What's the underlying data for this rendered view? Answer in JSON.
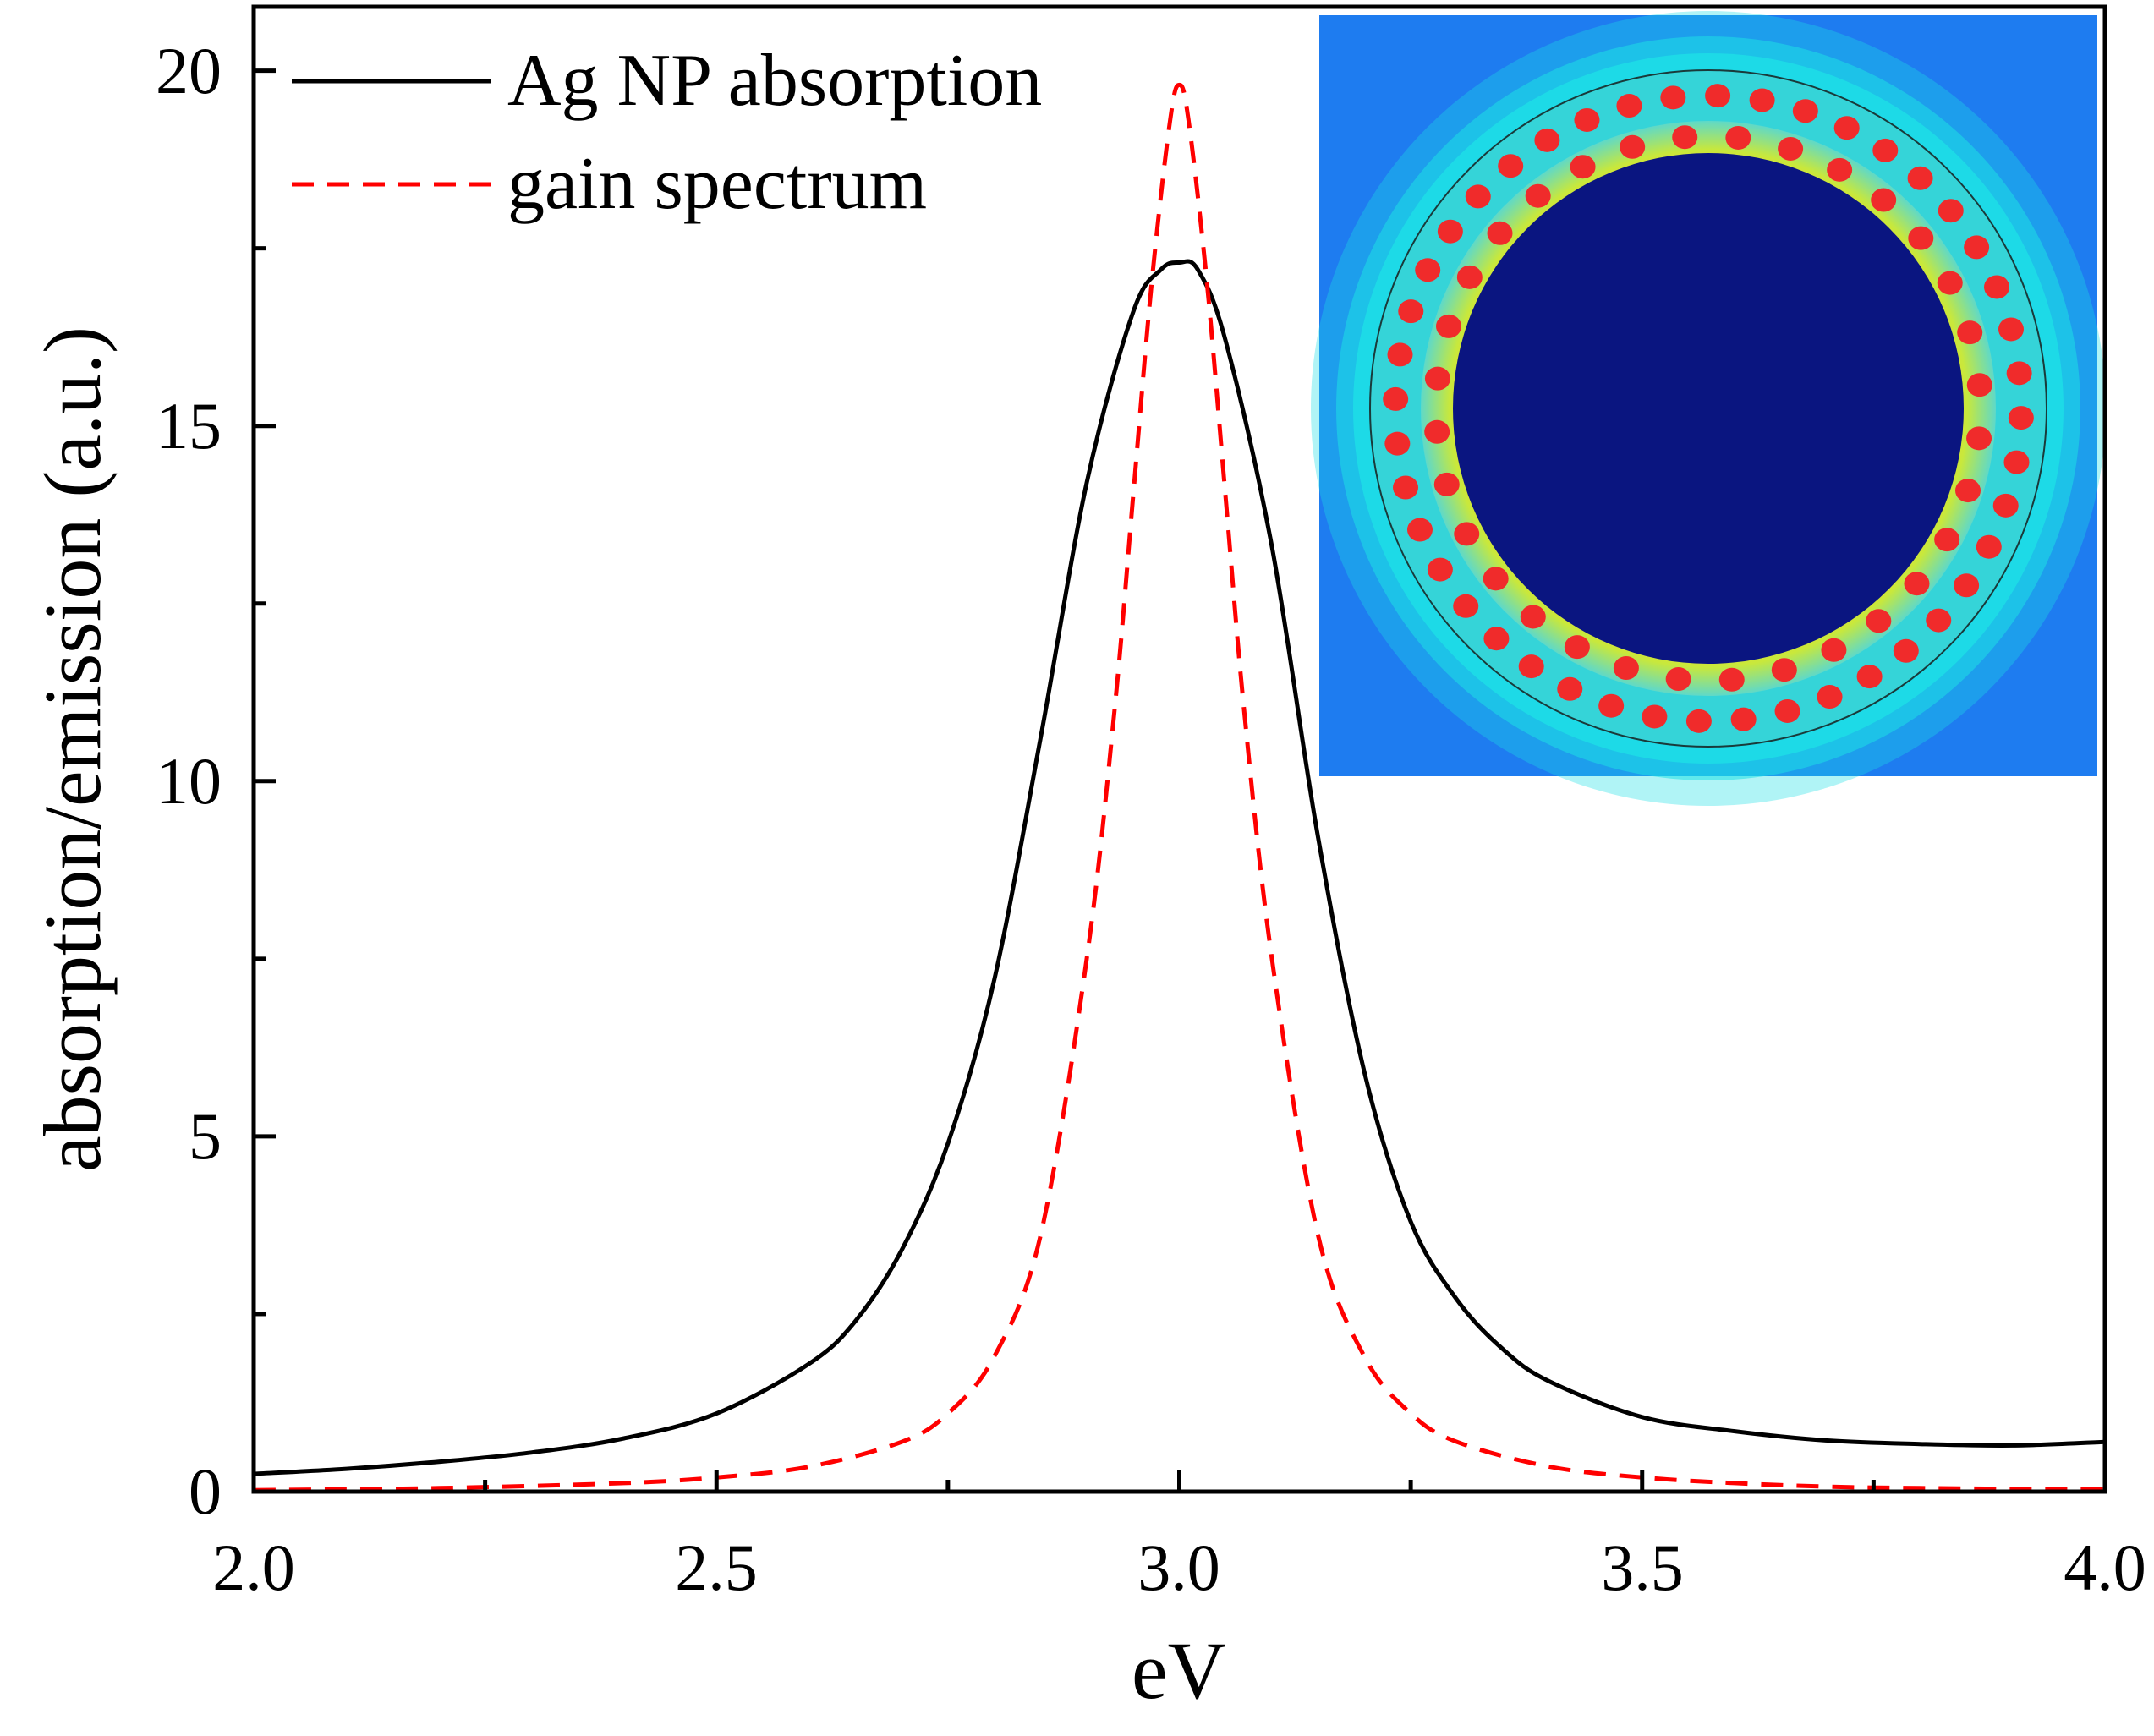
{
  "chart_data": {
    "type": "line",
    "xlabel": "eV",
    "ylabel": "absorption/emission (a.u.)",
    "xlim": [
      2.0,
      4.0
    ],
    "ylim": [
      0,
      20.9
    ],
    "x_ticks": [
      "2.0",
      "2.5",
      "3.0",
      "3.5",
      "4.0"
    ],
    "y_ticks": [
      "0",
      "5",
      "10",
      "15",
      "20"
    ],
    "legend_position": "top-left",
    "series": [
      {
        "name": "Ag NP absorption",
        "color": "#000000",
        "style": "solid",
        "x": [
          2.0,
          2.1,
          2.2,
          2.3,
          2.4,
          2.5,
          2.6,
          2.65,
          2.7,
          2.75,
          2.8,
          2.85,
          2.9,
          2.95,
          2.98,
          3.0,
          3.02,
          3.05,
          3.1,
          3.15,
          3.2,
          3.25,
          3.3,
          3.35,
          3.4,
          3.5,
          3.6,
          3.7,
          3.8,
          3.9,
          4.0
        ],
        "y": [
          0.25,
          0.32,
          0.42,
          0.55,
          0.75,
          1.1,
          1.8,
          2.4,
          3.4,
          4.9,
          7.2,
          10.6,
          14.2,
          16.6,
          17.2,
          17.3,
          17.2,
          16.2,
          13.3,
          9.2,
          5.9,
          3.8,
          2.7,
          2.0,
          1.55,
          1.05,
          0.85,
          0.72,
          0.67,
          0.65,
          0.7
        ]
      },
      {
        "name": "gain spectrum",
        "color": "#ff0000",
        "style": "dashed",
        "x": [
          2.0,
          2.2,
          2.4,
          2.5,
          2.6,
          2.7,
          2.75,
          2.8,
          2.85,
          2.9,
          2.93,
          2.95,
          2.97,
          2.99,
          3.0,
          3.01,
          3.03,
          3.05,
          3.07,
          3.1,
          3.15,
          3.2,
          3.25,
          3.3,
          3.4,
          3.5,
          3.6,
          3.7,
          3.8,
          4.0
        ],
        "y": [
          0.02,
          0.05,
          0.12,
          0.2,
          0.35,
          0.7,
          1.1,
          1.9,
          3.6,
          7.5,
          11.0,
          14.0,
          17.0,
          19.3,
          19.8,
          19.3,
          17.0,
          14.0,
          11.0,
          7.5,
          3.6,
          1.9,
          1.1,
          0.7,
          0.35,
          0.2,
          0.12,
          0.07,
          0.05,
          0.03
        ]
      }
    ]
  },
  "inset": {
    "image_name": "nanoparticle-shell-field-map",
    "background_color": "#1e7cf0",
    "glow_color": "#1ee0e6",
    "shell_color": "#ffd21e",
    "core_color": "#0a1580",
    "particle_color": "#f02b2b",
    "outer_ring_particles": 44,
    "inner_ring_particles": 32
  }
}
